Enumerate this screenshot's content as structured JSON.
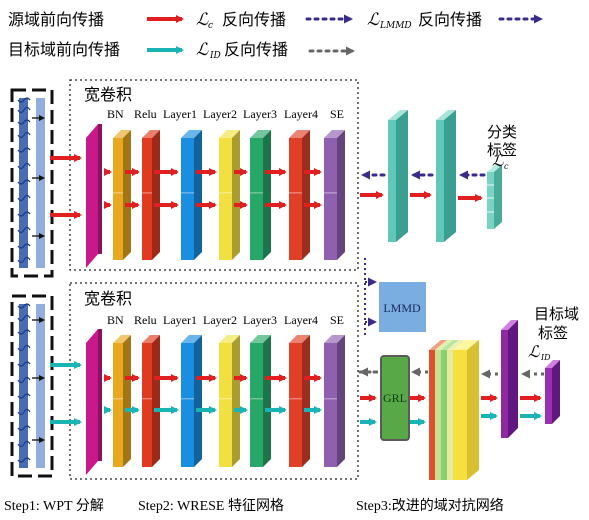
{
  "legend": {
    "source_forward": "源域前向传播",
    "lc_backward_sym": "ℒ",
    "lc_backward_sub": "c",
    "lc_backward_text": "反向传播",
    "lmmd_backward_sym": "ℒ",
    "lmmd_backward_sub": "LMMD",
    "lmmd_backward_text": "反向传播",
    "target_forward": "目标域前向传播",
    "lid_backward_sym": "ℒ",
    "lid_backward_sub": "ID",
    "lid_backward_text": "反向传播"
  },
  "top_branch": {
    "wide_conv": "宽卷积",
    "layers": [
      "BN",
      "Relu",
      "Layer1",
      "Layer2",
      "Layer3",
      "Layer4",
      "SE"
    ],
    "class_label_line1": "分类",
    "class_label_line2": "标签",
    "loss_sym": "ℒ",
    "loss_sub": "c"
  },
  "bottom_branch": {
    "wide_conv": "宽卷积",
    "layers": [
      "BN",
      "Relu",
      "Layer1",
      "Layer2",
      "Layer3",
      "Layer4",
      "SE"
    ],
    "lmmd": "LMMD",
    "grl": "GRL",
    "domain_label_line1": "目标域",
    "domain_label_line2": "标签",
    "loss_sym": "ℒ",
    "loss_sub": "ID"
  },
  "steps": {
    "step1": "Step1: WPT 分解",
    "step2": "Step2: WRESE 特征网格",
    "step3": "Step3:改进的域对抗网络"
  },
  "colors": {
    "source": "#e02020",
    "target": "#1ab4b4",
    "lmmd_arrow": "#3a2a8a",
    "lid_arrow": "#666666",
    "wide_conv": "#c8188a",
    "bn": "#e8a820",
    "relu": "#e03a20",
    "layer1": "#1a8ee0",
    "layer2": "#f2e040",
    "layer3": "#28a868",
    "layer4": "#e04028",
    "se": "#9060b0",
    "fc": "#60c8b8",
    "lmmd_box": "#7aaee0",
    "grl_box": "#58a848",
    "domain_fc": "#9028a0"
  }
}
